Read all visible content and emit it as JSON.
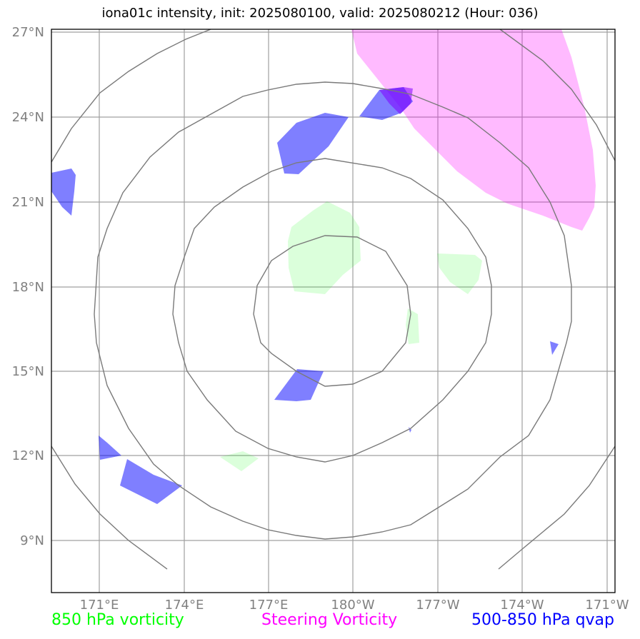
{
  "title": "iona01c intensity, init: 2025080100, valid: 2025080212 (Hour: 036)",
  "lat_labels": [
    "27°N",
    "24°N",
    "21°N",
    "18°N",
    "15°N",
    "12°N",
    "9°N"
  ],
  "lon_labels": [
    "171°E",
    "174°E",
    "177°E",
    "180°W",
    "177°W",
    "174°W",
    "171°W"
  ],
  "legend": {
    "vort850": "850 hPa vorticity",
    "steering": "Steering Vorticity",
    "qvap": "500-850 hPa qvap"
  },
  "colors": {
    "vort850": "#00ff00",
    "steering": "#ff00ff",
    "qvap": "#0000ff",
    "grid": "#808080",
    "frame": "#000000"
  },
  "range_rings": 4,
  "extent": {
    "lon_min": "169.3°E",
    "lon_max": "170.8°W",
    "lat_min": "7.2°N",
    "lat_max": "27.1°N"
  }
}
